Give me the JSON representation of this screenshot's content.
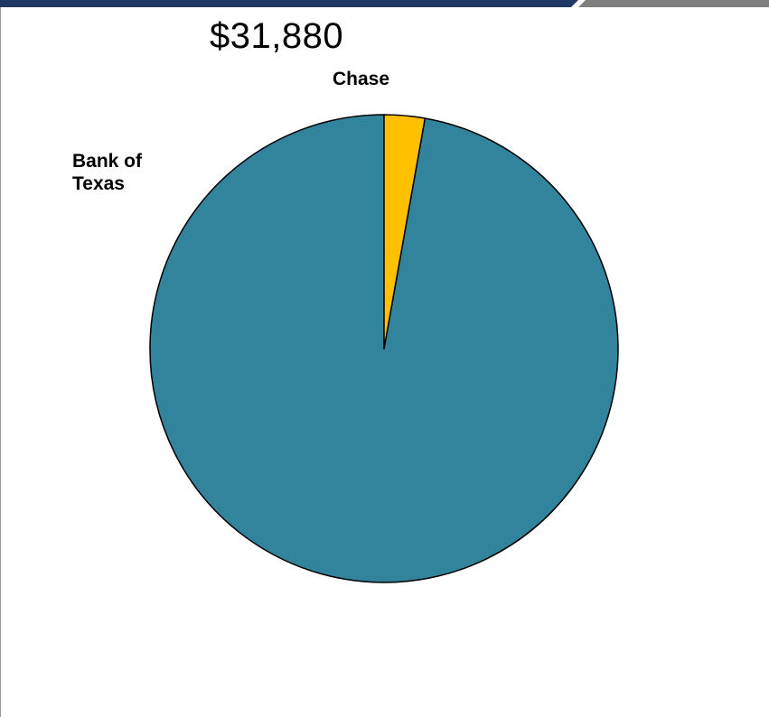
{
  "chart_data": {
    "type": "pie",
    "title": "$31,880",
    "start_angle_deg": 0,
    "direction": "counterclockwise",
    "slices": [
      {
        "label": [
          "Bank of",
          "Texas"
        ],
        "value": 97.2,
        "color": "#31849B"
      },
      {
        "label": [
          "Chase"
        ],
        "value": 2.8,
        "color": "#FFC000"
      }
    ],
    "legend": "none",
    "colors": {
      "outline": "#000000",
      "header_navy": "#1F3864",
      "header_gray": "#7F7F7F"
    }
  }
}
